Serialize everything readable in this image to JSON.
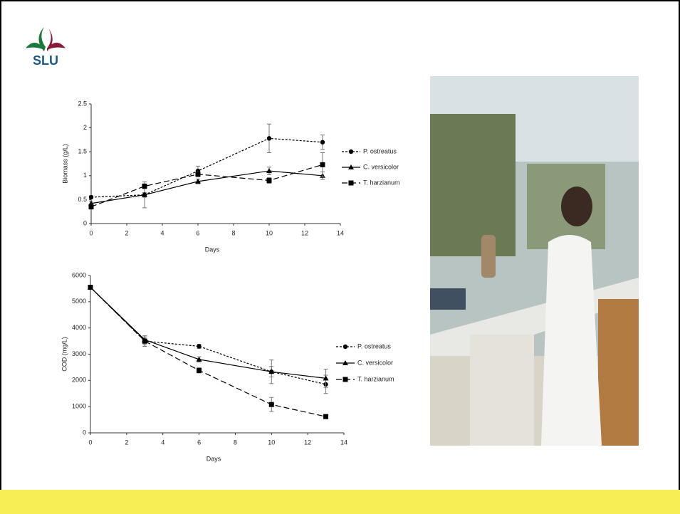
{
  "logo": {
    "text": "SLU"
  },
  "chart_data": [
    {
      "type": "line",
      "ylabel": "Biomass (g/L)",
      "xlabel": "Days",
      "legend": "right",
      "xlim": [
        0,
        14
      ],
      "xticks": [
        0,
        2,
        4,
        6,
        8,
        10,
        12,
        14
      ],
      "ylim": [
        0,
        2.5
      ],
      "yticks": [
        0,
        0.5,
        1,
        1.5,
        2,
        2.5
      ],
      "x": [
        0,
        3,
        6,
        10,
        13
      ],
      "series": [
        {
          "name": "P. ostreatus",
          "color": "#000000",
          "marker": "circle",
          "dash": "3,2",
          "values": [
            0.55,
            0.6,
            1.1,
            1.78,
            1.7
          ],
          "errors": [
            0.03,
            0.05,
            0.1,
            0.3,
            0.15
          ]
        },
        {
          "name": "C. versicolor",
          "color": "#000000",
          "marker": "triangle",
          "dash": "none",
          "values": [
            0.42,
            0.6,
            0.88,
            1.1,
            1.0
          ],
          "errors": [
            0.05,
            0.27,
            0.05,
            0.08,
            0.08
          ]
        },
        {
          "name": "T. harzianum",
          "color": "#000000",
          "marker": "square",
          "dash": "8,4",
          "values": [
            0.35,
            0.78,
            1.03,
            0.9,
            1.23
          ],
          "errors": [
            0.05,
            0.05,
            0.05,
            0.06,
            0.25
          ]
        }
      ]
    },
    {
      "type": "line",
      "ylabel": "COD (mg/L)",
      "xlabel": "Days",
      "legend": "right",
      "xlim": [
        0,
        14
      ],
      "xticks": [
        0,
        2,
        4,
        6,
        8,
        10,
        12,
        14
      ],
      "ylim": [
        0,
        6000
      ],
      "yticks": [
        0,
        1000,
        2000,
        3000,
        4000,
        5000,
        6000
      ],
      "x": [
        0,
        3,
        6,
        10,
        13
      ],
      "series": [
        {
          "name": "P. ostreatus",
          "color": "#000000",
          "marker": "circle",
          "dash": "3,2",
          "values": [
            5550,
            3500,
            3300,
            2330,
            1850
          ],
          "errors": [
            50,
            200,
            80,
            450,
            350
          ]
        },
        {
          "name": "C. versicolor",
          "color": "#000000",
          "marker": "triangle",
          "dash": "none",
          "values": [
            5550,
            3550,
            2800,
            2330,
            2080
          ],
          "errors": [
            50,
            150,
            100,
            200,
            350
          ]
        },
        {
          "name": "T. harzianum",
          "color": "#000000",
          "marker": "square",
          "dash": "8,4",
          "values": [
            5550,
            3500,
            2380,
            1080,
            620
          ],
          "errors": [
            50,
            150,
            100,
            270,
            80
          ]
        }
      ]
    }
  ]
}
